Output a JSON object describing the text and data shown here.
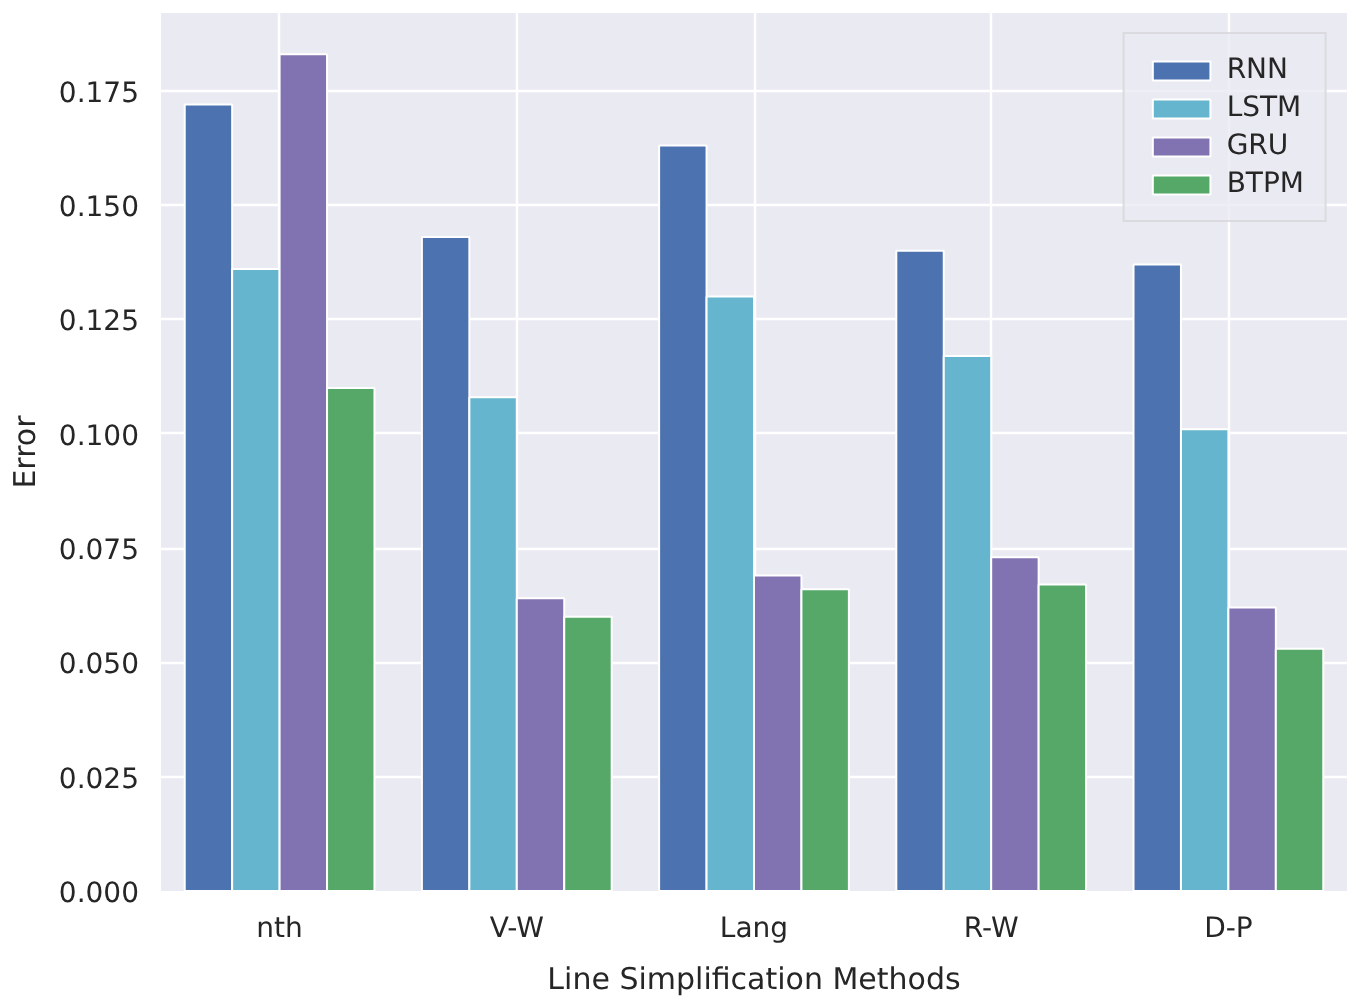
{
  "chart_data": {
    "type": "bar",
    "xlabel": "Line Simplification Methods",
    "ylabel": "Error",
    "categories": [
      "nth",
      "V-W",
      "Lang",
      "R-W",
      "D-P"
    ],
    "series": [
      {
        "name": "RNN",
        "color": "#4c72b0",
        "values": [
          0.172,
          0.143,
          0.163,
          0.14,
          0.137
        ]
      },
      {
        "name": "LSTM",
        "color": "#64b5cd",
        "values": [
          0.136,
          0.108,
          0.13,
          0.117,
          0.101
        ]
      },
      {
        "name": "GRU",
        "color": "#8172b2",
        "values": [
          0.183,
          0.064,
          0.069,
          0.073,
          0.062
        ]
      },
      {
        "name": "BTPM",
        "color": "#55a868",
        "values": [
          0.11,
          0.06,
          0.066,
          0.067,
          0.053
        ]
      }
    ],
    "ylim": [
      0,
      0.192
    ],
    "yticks": [
      {
        "value": 0,
        "label": "0.000"
      },
      0.025,
      {
        "value": 0.05,
        "label": "0.050"
      },
      0.075,
      {
        "value": 0.1,
        "label": "0.100"
      },
      0.125,
      {
        "value": 0.15,
        "label": "0.150"
      },
      0.175
    ],
    "grid": true,
    "legend": "top right"
  }
}
